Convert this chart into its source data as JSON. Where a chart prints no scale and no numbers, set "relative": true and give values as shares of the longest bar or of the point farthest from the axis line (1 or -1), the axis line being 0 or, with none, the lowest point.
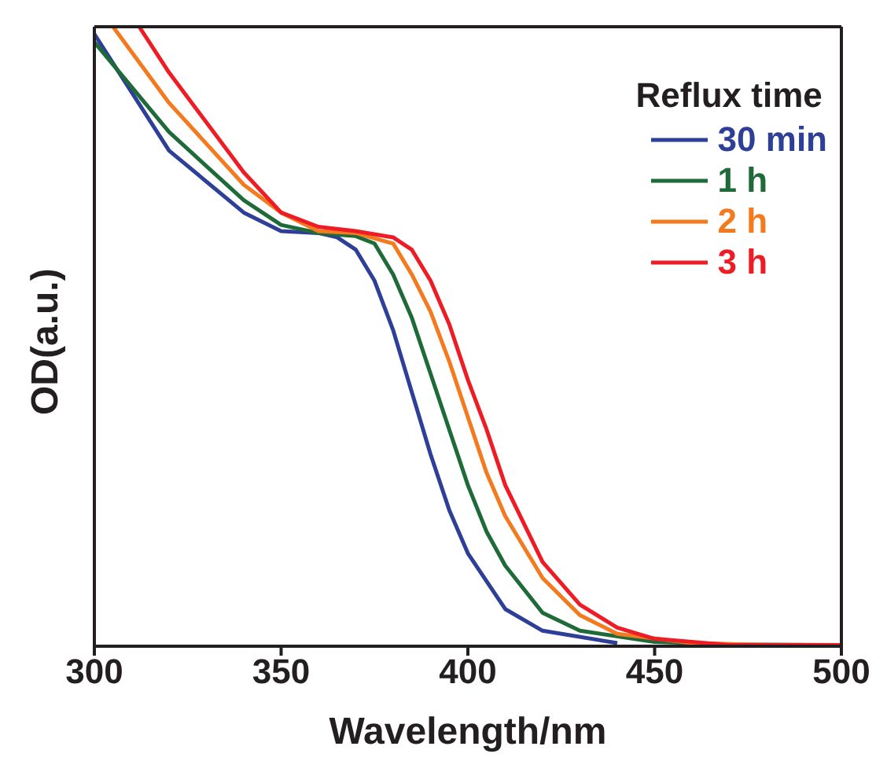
{
  "chart_data": {
    "type": "line",
    "relative": true,
    "xlabel": "Wavelength/nm",
    "ylabel": "OD(a.u.)",
    "legend_title": "Reflux time",
    "legend": "top right",
    "marker": "none",
    "line_style": "solid",
    "xlim": [
      300,
      500
    ],
    "xticks": [
      300,
      350,
      400,
      450,
      500
    ],
    "series": [
      {
        "name": "30 min",
        "color": "#2e3f98",
        "x": [
          300,
          320,
          340,
          350,
          360,
          365,
          370,
          375,
          380,
          385,
          390,
          395,
          400,
          410,
          420,
          440
        ],
        "values": [
          0.988,
          0.8,
          0.7,
          0.67,
          0.667,
          0.66,
          0.64,
          0.59,
          0.51,
          0.41,
          0.31,
          0.22,
          0.15,
          0.06,
          0.025,
          0.005
        ]
      },
      {
        "name": "1 h",
        "color": "#1e6a38",
        "x": [
          300,
          320,
          340,
          350,
          360,
          370,
          375,
          380,
          385,
          390,
          395,
          400,
          405,
          410,
          420,
          430,
          450,
          470,
          500
        ],
        "values": [
          0.975,
          0.83,
          0.72,
          0.68,
          0.667,
          0.662,
          0.65,
          0.6,
          0.53,
          0.44,
          0.35,
          0.26,
          0.185,
          0.13,
          0.054,
          0.025,
          0.007,
          0.003,
          0.002
        ]
      },
      {
        "name": "2 h",
        "color": "#f47a20",
        "x": [
          305,
          320,
          340,
          350,
          360,
          370,
          380,
          385,
          390,
          395,
          400,
          405,
          410,
          420,
          430,
          440,
          460,
          480,
          500
        ],
        "values": [
          1,
          0.877,
          0.745,
          0.7,
          0.67,
          0.667,
          0.65,
          0.6,
          0.54,
          0.46,
          0.37,
          0.28,
          0.21,
          0.11,
          0.05,
          0.02,
          0.005,
          0.002,
          0.002
        ]
      },
      {
        "name": "3 h",
        "color": "#ee1c25",
        "x": [
          312,
          320,
          340,
          350,
          360,
          370,
          380,
          385,
          390,
          395,
          400,
          405,
          410,
          420,
          430,
          440,
          450,
          470,
          500
        ],
        "values": [
          1,
          0.926,
          0.765,
          0.7,
          0.677,
          0.67,
          0.66,
          0.64,
          0.59,
          0.52,
          0.43,
          0.35,
          0.26,
          0.136,
          0.067,
          0.03,
          0.012,
          0.002,
          0.002
        ]
      }
    ]
  }
}
